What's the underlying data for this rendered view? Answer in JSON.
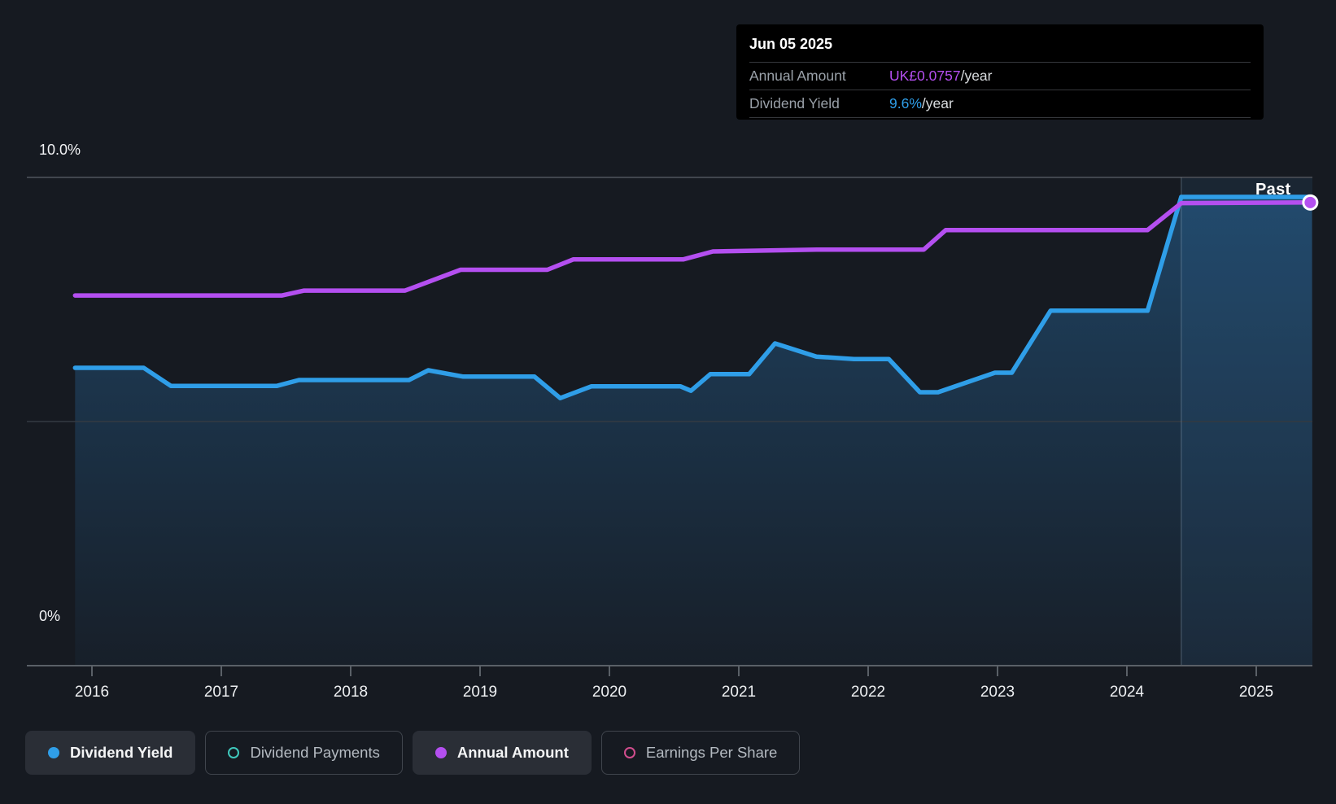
{
  "tooltip": {
    "date": "Jun 05 2025",
    "rows": [
      {
        "label": "Annual Amount",
        "value": "UK£0.0757",
        "suffix": "/year",
        "color": "#b44ff0"
      },
      {
        "label": "Dividend Yield",
        "value": "9.6%",
        "suffix": "/year",
        "color": "#2f9ee8"
      }
    ]
  },
  "past_region_label": "Past",
  "legend": {
    "items": [
      {
        "label": "Dividend Yield",
        "color": "#2f9ee8",
        "marker": "filled",
        "active": true
      },
      {
        "label": "Dividend Payments",
        "color": "#3fc8bc",
        "marker": "hollow",
        "active": false
      },
      {
        "label": "Annual Amount",
        "color": "#b44ff0",
        "marker": "filled",
        "active": true
      },
      {
        "label": "Earnings Per Share",
        "color": "#d14d8d",
        "marker": "hollow",
        "active": false
      }
    ]
  },
  "chart_data": {
    "type": "line",
    "x_ticks": [
      "2016",
      "2017",
      "2018",
      "2019",
      "2020",
      "2021",
      "2022",
      "2023",
      "2024",
      "2025"
    ],
    "x_tick_years": [
      2016,
      2017,
      2018,
      2019,
      2020,
      2021,
      2022,
      2023,
      2024,
      2025
    ],
    "x_range": [
      2015.87,
      2025.43
    ],
    "y_axis": {
      "top_label": "10.0%",
      "bottom_label": "0%",
      "ylim_pct": [
        0,
        10
      ]
    },
    "divider_year": 2024.42,
    "past_region_label": "Past",
    "series": [
      {
        "name": "Dividend Yield",
        "unit": "%",
        "color": "#2f9ee8",
        "area": true,
        "ymax": 10,
        "points": [
          [
            2015.87,
            6.1
          ],
          [
            2016.4,
            6.1
          ],
          [
            2016.61,
            5.73
          ],
          [
            2017.43,
            5.73
          ],
          [
            2017.6,
            5.85
          ],
          [
            2018.45,
            5.85
          ],
          [
            2018.6,
            6.05
          ],
          [
            2018.87,
            5.92
          ],
          [
            2019.42,
            5.92
          ],
          [
            2019.62,
            5.48
          ],
          [
            2019.86,
            5.72
          ],
          [
            2020.55,
            5.72
          ],
          [
            2020.63,
            5.63
          ],
          [
            2020.78,
            5.97
          ],
          [
            2021.08,
            5.97
          ],
          [
            2021.28,
            6.6
          ],
          [
            2021.6,
            6.33
          ],
          [
            2021.89,
            6.28
          ],
          [
            2022.16,
            6.28
          ],
          [
            2022.4,
            5.6
          ],
          [
            2022.54,
            5.6
          ],
          [
            2022.98,
            6.0
          ],
          [
            2023.11,
            6.0
          ],
          [
            2023.41,
            7.27
          ],
          [
            2024.16,
            7.27
          ],
          [
            2024.42,
            9.6
          ],
          [
            2025.43,
            9.6
          ]
        ]
      },
      {
        "name": "Annual Amount",
        "unit": "UK£/year",
        "color": "#b44ff0",
        "area": false,
        "ymax": 0.0798,
        "points": [
          [
            2015.87,
            0.0605
          ],
          [
            2017.47,
            0.0605
          ],
          [
            2017.64,
            0.0613
          ],
          [
            2018.42,
            0.0613
          ],
          [
            2018.85,
            0.0647
          ],
          [
            2019.52,
            0.0647
          ],
          [
            2019.72,
            0.0664
          ],
          [
            2020.57,
            0.0664
          ],
          [
            2020.8,
            0.0677
          ],
          [
            2021.6,
            0.068
          ],
          [
            2022.43,
            0.068
          ],
          [
            2022.6,
            0.0712
          ],
          [
            2024.16,
            0.0712
          ],
          [
            2024.42,
            0.0756
          ],
          [
            2025.43,
            0.0757
          ]
        ],
        "end_marker": true
      }
    ]
  }
}
